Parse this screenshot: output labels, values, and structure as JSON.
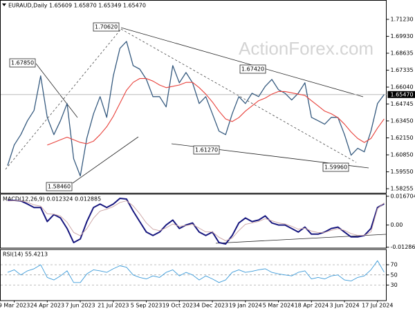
{
  "chart_data": [
    {
      "type": "line",
      "title": "EURAUD,Daily  1.65609 1.65870 1.65349 1.65470",
      "watermark": "ActionForex.com",
      "ylim": [
        1.5794,
        1.7266
      ],
      "yticks": [
        {
          "value": 1.7123,
          "label": "1.71230"
        },
        {
          "value": 1.6993,
          "label": "1.69930"
        },
        {
          "value": 1.68635,
          "label": "1.68635"
        },
        {
          "value": 1.67335,
          "label": "1.67335"
        },
        {
          "value": 1.6604,
          "label": "1.66040"
        },
        {
          "value": 1.64745,
          "label": "1.64745"
        },
        {
          "value": 1.6345,
          "label": "1.63450"
        },
        {
          "value": 1.6215,
          "label": "1.62150"
        },
        {
          "value": 1.6085,
          "label": "1.60850"
        },
        {
          "value": 1.5955,
          "label": "1.59550"
        },
        {
          "value": 1.58255,
          "label": "1.58255"
        }
      ],
      "grid": false,
      "current_price": {
        "value": 1.6547,
        "label": "1.65470"
      },
      "annotations": [
        "1.70620",
        "1.67850",
        "1.67420",
        "1.61270",
        "1.58460",
        "1.59960"
      ],
      "series": [
        {
          "name": "EURAUD",
          "color": "#34597e",
          "width": 1.3,
          "values": [
            1.6003,
            1.6161,
            1.624,
            1.6346,
            1.6425,
            1.669,
            1.6372,
            1.624,
            1.6346,
            1.6478,
            1.6055,
            1.5923,
            1.6214,
            1.6399,
            1.6531,
            1.6372,
            1.669,
            1.6901,
            1.6954,
            1.6769,
            1.6742,
            1.6663,
            1.6531,
            1.6531,
            1.6452,
            1.6769,
            1.6637,
            1.6716,
            1.6637,
            1.6478,
            1.6531,
            1.6399,
            1.6267,
            1.624,
            1.6399,
            1.6531,
            1.6478,
            1.6557,
            1.6531,
            1.661,
            1.6663,
            1.6584,
            1.6557,
            1.6505,
            1.6557,
            1.6637,
            1.6372,
            1.6346,
            1.632,
            1.6372,
            1.6372,
            1.624,
            1.6082,
            1.6135,
            1.6108,
            1.6267,
            1.6478,
            1.6547
          ]
        },
        {
          "name": "MA",
          "color": "#e8403a",
          "width": 1.1,
          "values": [
            null,
            null,
            null,
            null,
            null,
            null,
            1.616,
            1.618,
            1.62,
            1.622,
            1.62,
            1.618,
            1.617,
            1.619,
            1.624,
            1.63,
            1.638,
            1.648,
            1.658,
            1.664,
            1.667,
            1.667,
            1.665,
            1.662,
            1.66,
            1.661,
            1.662,
            1.664,
            1.664,
            1.66,
            1.655,
            1.649,
            1.642,
            1.636,
            1.634,
            1.637,
            1.642,
            1.646,
            1.65,
            1.652,
            1.655,
            1.657,
            1.657,
            1.656,
            1.655,
            1.654,
            1.65,
            1.646,
            1.642,
            1.64,
            1.637,
            1.632,
            1.626,
            1.621,
            1.618,
            1.621,
            1.629,
            1.636
          ]
        }
      ]
    },
    {
      "type": "line",
      "title": "MACD(12,26,9) 0.012324 0.012885",
      "ylim": [
        -0.0134,
        0.0179
      ],
      "yticks": [
        0.016704,
        {
          "value": 0,
          "label": "0.00"
        },
        -0.012869
      ],
      "grid": false,
      "series": [
        {
          "name": "MACD",
          "color": "#16167e",
          "width": 2,
          "values": [
            0.0143,
            0.0143,
            0.014,
            0.0122,
            0.0102,
            0.0102,
            0.002,
            0.0061,
            0.0041,
            -0.002,
            -0.0102,
            -0.0081,
            0.002,
            0.0102,
            0.0122,
            0.0102,
            0.0122,
            0.0155,
            0.0151,
            0.0081,
            0.002,
            -0.0041,
            -0.0061,
            -0.0041,
            0,
            0.0029,
            -0.002,
            0,
            0.0012,
            -0.0041,
            -0.0061,
            -0.0041,
            -0.0102,
            -0.011,
            -0.0061,
            0.0012,
            0.0041,
            0.002,
            0.0029,
            0.0053,
            0.0012,
            0,
            0,
            -0.002,
            -0.0041,
            -0.0012,
            -0.0053,
            -0.0053,
            -0.0041,
            -0.002,
            -0.0012,
            -0.0041,
            -0.0069,
            -0.0069,
            -0.0061,
            -0.002,
            0.0102,
            0.012324
          ]
        },
        {
          "name": "Signal",
          "color": "#c9a0a0",
          "width": 0.9,
          "values": [
            0.014,
            0.0141,
            0.0141,
            0.0132,
            0.0117,
            0.011,
            0.0065,
            0.0063,
            0.0052,
            0.0016,
            -0.0043,
            -0.0062,
            -0.0021,
            0.004,
            0.0081,
            0.0092,
            0.0107,
            0.0131,
            0.0141,
            0.0111,
            0.0066,
            0.0012,
            -0.0024,
            -0.0033,
            -0.0016,
            0.0006,
            -0.0007,
            -0.0003,
            0.0004,
            -0.0018,
            -0.004,
            -0.004,
            -0.0071,
            -0.0091,
            -0.0076,
            -0.0032,
            0.0004,
            0.0012,
            0.0021,
            0.0037,
            0.0025,
            0.0012,
            0.0006,
            -0.0007,
            -0.0024,
            -0.0018,
            -0.0035,
            -0.0044,
            -0.0043,
            -0.0031,
            -0.0021,
            -0.0031,
            -0.005,
            -0.006,
            -0.006,
            -0.004,
            0.0095,
            0.012885
          ]
        }
      ]
    },
    {
      "type": "line",
      "title": "RSI(14) 55.4213",
      "ylim": [
        0,
        100
      ],
      "yticks": [
        70,
        50,
        30
      ],
      "grid": true,
      "categories": [
        null,
        "9 Mar 2023",
        null,
        null,
        null,
        null,
        "24 Apr 2023",
        null,
        null,
        null,
        null,
        "7 Jun 2023",
        null,
        null,
        null,
        null,
        "21 Jul 2023",
        null,
        null,
        null,
        null,
        "5 Sep 2023",
        null,
        null,
        null,
        null,
        "19 Oct 2023",
        null,
        null,
        null,
        null,
        "4 Dec 2023",
        null,
        null,
        null,
        null,
        "19 Jan 2024",
        null,
        null,
        null,
        null,
        "5 Mar 2024",
        null,
        null,
        null,
        null,
        "18 Apr 2024",
        null,
        null,
        null,
        null,
        "3 Jun 2024",
        null,
        null,
        null,
        null,
        "17 Jul 2024",
        null
      ],
      "series": [
        {
          "name": "RSI",
          "color": "#3a9ad9",
          "width": 0.9,
          "values": [
            55,
            60,
            50,
            58,
            62,
            70,
            45,
            40,
            48,
            58,
            35,
            35,
            52,
            60,
            58,
            55,
            62,
            68,
            65,
            50,
            45,
            42,
            48,
            45,
            55,
            60,
            48,
            55,
            50,
            40,
            48,
            42,
            35,
            40,
            55,
            60,
            55,
            57,
            60,
            62,
            55,
            52,
            50,
            48,
            55,
            58,
            42,
            45,
            42,
            48,
            50,
            40,
            38,
            45,
            48,
            60,
            78,
            55.4213
          ]
        }
      ]
    }
  ]
}
